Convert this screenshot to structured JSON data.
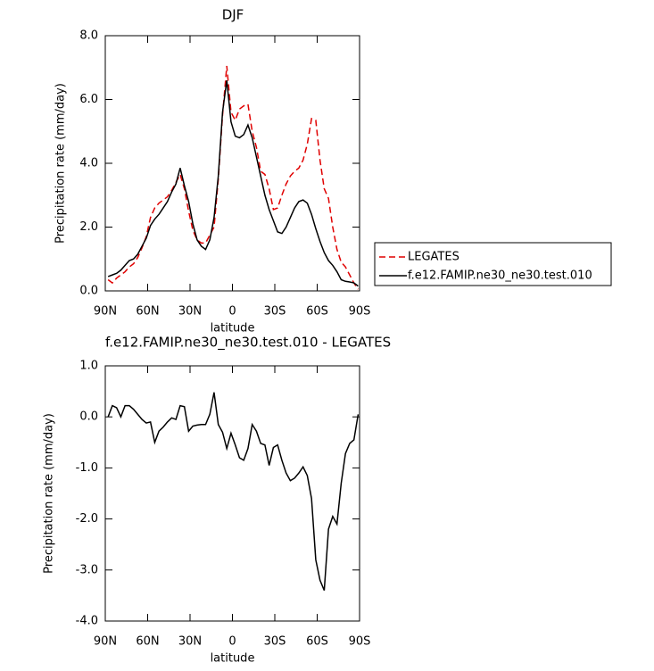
{
  "chart_data": [
    {
      "type": "line",
      "title": "DJF",
      "xlabel": "latitude",
      "ylabel": "Precipitation rate (mm/day)",
      "x": [
        88,
        85,
        82,
        79,
        76,
        73,
        70,
        67,
        64,
        61,
        58,
        55,
        52,
        49,
        46,
        43,
        40,
        37,
        34,
        31,
        28,
        25,
        22,
        19,
        16,
        13,
        10,
        7,
        4,
        1,
        -2,
        -5,
        -8,
        -11,
        -14,
        -17,
        -20,
        -23,
        -26,
        -29,
        -32,
        -35,
        -38,
        -41,
        -44,
        -47,
        -50,
        -53,
        -56,
        -59,
        -62,
        -65,
        -68,
        -71,
        -74,
        -77,
        -80,
        -83,
        -86,
        -89
      ],
      "series": [
        {
          "name": "LEGATES",
          "color": "#e00000",
          "dash": true,
          "values": [
            0.35,
            0.25,
            0.4,
            0.5,
            0.6,
            0.75,
            0.85,
            1.05,
            1.35,
            1.7,
            2.3,
            2.6,
            2.75,
            2.85,
            2.95,
            3.15,
            3.4,
            3.65,
            3.2,
            2.5,
            1.9,
            1.6,
            1.5,
            1.5,
            1.75,
            2.0,
            3.5,
            5.5,
            7.05,
            5.6,
            5.35,
            5.7,
            5.8,
            5.85,
            5.0,
            4.5,
            3.75,
            3.65,
            3.2,
            2.55,
            2.6,
            3.0,
            3.35,
            3.6,
            3.75,
            3.85,
            4.1,
            4.6,
            5.4,
            5.35,
            4.1,
            3.2,
            2.9,
            2.0,
            1.3,
            0.9,
            0.75,
            0.5,
            0.25,
            0.05
          ]
        },
        {
          "name": "f.e12.FAMIP.ne30_ne30.test.010",
          "color": "#000000",
          "dash": false,
          "values": [
            0.45,
            0.5,
            0.55,
            0.65,
            0.8,
            0.95,
            1.0,
            1.15,
            1.4,
            1.65,
            2.05,
            2.25,
            2.4,
            2.6,
            2.8,
            3.1,
            3.35,
            3.85,
            3.3,
            2.8,
            2.1,
            1.6,
            1.4,
            1.3,
            1.6,
            2.3,
            3.6,
            5.6,
            6.6,
            5.3,
            4.85,
            4.8,
            4.9,
            5.2,
            4.8,
            4.2,
            3.6,
            3.0,
            2.55,
            2.2,
            1.85,
            1.8,
            2.0,
            2.3,
            2.6,
            2.8,
            2.85,
            2.75,
            2.4,
            1.95,
            1.55,
            1.2,
            0.95,
            0.8,
            0.6,
            0.35,
            0.3,
            0.28,
            0.25,
            0.15
          ]
        }
      ],
      "xlim": [
        90,
        -90
      ],
      "xticks": [
        {
          "value": 90,
          "label": "90N"
        },
        {
          "value": 60,
          "label": "60N"
        },
        {
          "value": 30,
          "label": "30N"
        },
        0,
        {
          "value": -30,
          "label": "30S"
        },
        {
          "value": -60,
          "label": "60S"
        },
        {
          "value": -90,
          "label": "90S"
        }
      ],
      "ylim": [
        0,
        8
      ],
      "yticks": [
        {
          "value": 0,
          "label": "0.0"
        },
        {
          "value": 2,
          "label": "2.0"
        },
        {
          "value": 4,
          "label": "4.0"
        },
        {
          "value": 6,
          "label": "6.0"
        },
        {
          "value": 8,
          "label": "8.0"
        }
      ],
      "legend": "right"
    },
    {
      "type": "line",
      "title": "f.e12.FAMIP.ne30_ne30.test.010 - LEGATES",
      "xlabel": "latitude",
      "ylabel": "Precipitation rate (mm/day)",
      "x": [
        88,
        85,
        82,
        79,
        76,
        73,
        70,
        67,
        64,
        61,
        58,
        55,
        52,
        49,
        46,
        43,
        40,
        37,
        34,
        31,
        28,
        25,
        22,
        19,
        16,
        13,
        10,
        7,
        4,
        1,
        -2,
        -5,
        -8,
        -11,
        -14,
        -17,
        -20,
        -23,
        -26,
        -29,
        -32,
        -35,
        -38,
        -41,
        -44,
        -47,
        -50,
        -53,
        -56,
        -59,
        -62,
        -65,
        -68,
        -71,
        -74,
        -77,
        -80,
        -83,
        -86,
        -89
      ],
      "values": [
        0.0,
        0.22,
        0.18,
        0.0,
        0.22,
        0.22,
        0.15,
        0.05,
        -0.05,
        -0.12,
        -0.1,
        -0.5,
        -0.28,
        -0.2,
        -0.1,
        -0.02,
        -0.05,
        0.22,
        0.2,
        -0.28,
        -0.18,
        -0.16,
        -0.15,
        -0.15,
        0.05,
        0.48,
        -0.15,
        -0.3,
        -0.62,
        -0.32,
        -0.55,
        -0.8,
        -0.85,
        -0.62,
        -0.15,
        -0.28,
        -0.52,
        -0.55,
        -0.95,
        -0.6,
        -0.55,
        -0.85,
        -1.1,
        -1.25,
        -1.2,
        -1.1,
        -0.98,
        -1.15,
        -1.6,
        -2.8,
        -3.2,
        -3.4,
        -2.2,
        -1.95,
        -2.1,
        -1.3,
        -0.72,
        -0.52,
        -0.45,
        0.05
      ],
      "color": "#000000",
      "xlim": [
        90,
        -90
      ],
      "xticks": [
        {
          "value": 90,
          "label": "90N"
        },
        {
          "value": 60,
          "label": "60N"
        },
        {
          "value": 30,
          "label": "30N"
        },
        0,
        {
          "value": -30,
          "label": "30S"
        },
        {
          "value": -60,
          "label": "60S"
        },
        {
          "value": -90,
          "label": "90S"
        }
      ],
      "ylim": [
        -4,
        1
      ],
      "yticks": [
        {
          "value": -4,
          "label": "-4.0"
        },
        {
          "value": -3,
          "label": "-3.0"
        },
        {
          "value": -2,
          "label": "-2.0"
        },
        {
          "value": -1,
          "label": "-1.0"
        },
        {
          "value": 0,
          "label": "0.0"
        },
        {
          "value": 1,
          "label": "1.0"
        }
      ]
    }
  ]
}
